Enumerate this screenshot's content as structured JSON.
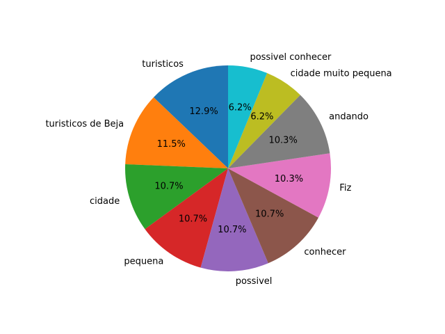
{
  "chart_data": {
    "type": "pie",
    "start_angle_deg": 90,
    "direction": "counterclockwise",
    "slices": [
      {
        "label": "turisticos",
        "value": 12.9,
        "pct_text": "12.9%",
        "color": "#1f77b4"
      },
      {
        "label": "turisticos de Beja",
        "value": 11.5,
        "pct_text": "11.5%",
        "color": "#ff7f0e"
      },
      {
        "label": "cidade",
        "value": 10.7,
        "pct_text": "10.7%",
        "color": "#2ca02c"
      },
      {
        "label": "pequena",
        "value": 10.7,
        "pct_text": "10.7%",
        "color": "#d62728"
      },
      {
        "label": "possivel",
        "value": 10.7,
        "pct_text": "10.7%",
        "color": "#9467bd"
      },
      {
        "label": "conhecer",
        "value": 10.7,
        "pct_text": "10.7%",
        "color": "#8c564b"
      },
      {
        "label": "Fiz",
        "value": 10.3,
        "pct_text": "10.3%",
        "color": "#e377c2"
      },
      {
        "label": "andando",
        "value": 10.3,
        "pct_text": "10.3%",
        "color": "#7f7f7f"
      },
      {
        "label": "cidade muito pequena",
        "value": 6.2,
        "pct_text": "6.2%",
        "color": "#bcbd22"
      },
      {
        "label": "possivel conhecer",
        "value": 6.2,
        "pct_text": "6.2%",
        "color": "#17becf"
      }
    ]
  }
}
